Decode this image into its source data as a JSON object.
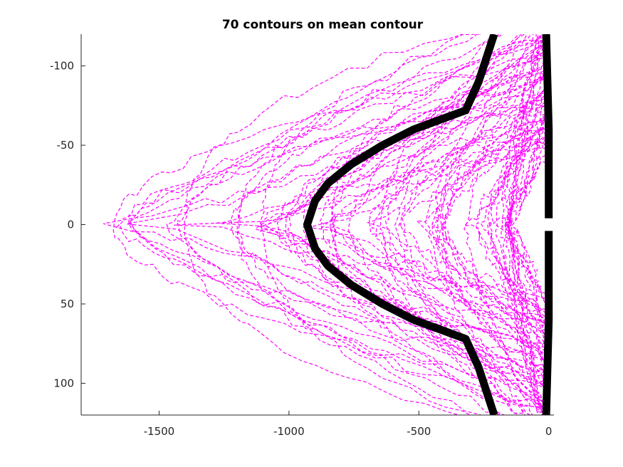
{
  "chart_data": {
    "type": "line",
    "title": "70 contours on mean contour",
    "xlabel": "",
    "ylabel": "",
    "xlim": [
      -1800,
      20
    ],
    "ylim": [
      120,
      -120
    ],
    "y_axis_reversed": true,
    "grid": false,
    "xticks": [
      -1500,
      -1000,
      -500,
      0
    ],
    "xtick_labels": [
      "-1500",
      "-1000",
      "-500",
      "0"
    ],
    "yticks": [
      -100,
      -50,
      0,
      50,
      100
    ],
    "ytick_labels": [
      "-100",
      "-50",
      "0",
      "50",
      "100"
    ],
    "colors": {
      "contours": "#ff00ff",
      "mean": "#000000"
    },
    "series": [
      {
        "style": "dashed",
        "contour_count": 70,
        "mean_curve": [
          [
            -210,
            -120
          ],
          [
            -270,
            -90
          ],
          [
            -320,
            -72
          ],
          [
            -420,
            -66
          ],
          [
            -520,
            -60
          ],
          [
            -640,
            -50
          ],
          [
            -760,
            -38
          ],
          [
            -850,
            -26
          ],
          [
            -900,
            -15
          ],
          [
            -930,
            0
          ],
          [
            -900,
            15
          ],
          [
            -850,
            26
          ],
          [
            -760,
            38
          ],
          [
            -640,
            50
          ],
          [
            -520,
            60
          ],
          [
            -420,
            66
          ],
          [
            -320,
            72
          ],
          [
            -270,
            90
          ],
          [
            -210,
            120
          ]
        ],
        "mean_right_upper": [
          [
            -10,
            -120
          ],
          [
            0,
            -60
          ],
          [
            0,
            -4
          ]
        ],
        "mean_right_lower": [
          [
            0,
            4
          ],
          [
            0,
            60
          ],
          [
            -10,
            120
          ]
        ]
      }
    ]
  }
}
